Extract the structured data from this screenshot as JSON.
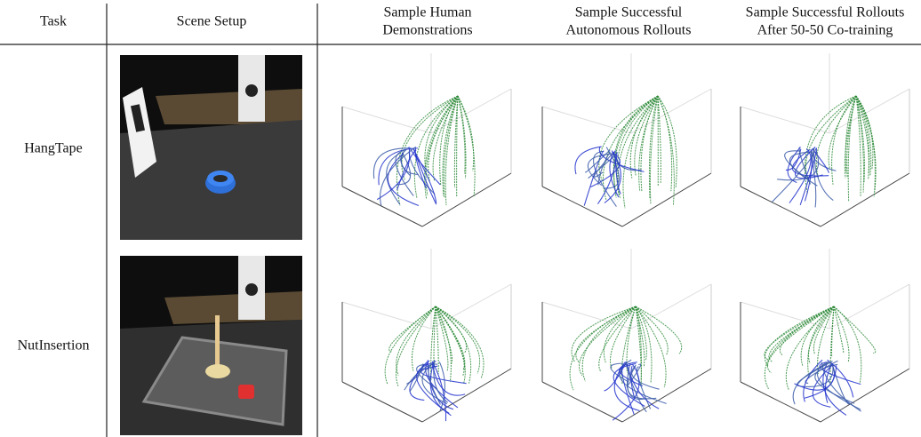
{
  "header": {
    "columns": [
      [
        "Task"
      ],
      [
        "Scene Setup"
      ],
      [
        "Sample Human",
        "Demonstrations"
      ],
      [
        "Sample Successful",
        "Autonomous Rollouts"
      ],
      [
        "Sample Successful Rollouts",
        "After 50-50 Co-training"
      ]
    ]
  },
  "rows": [
    "HangTape",
    "NutInsertion"
  ]
}
